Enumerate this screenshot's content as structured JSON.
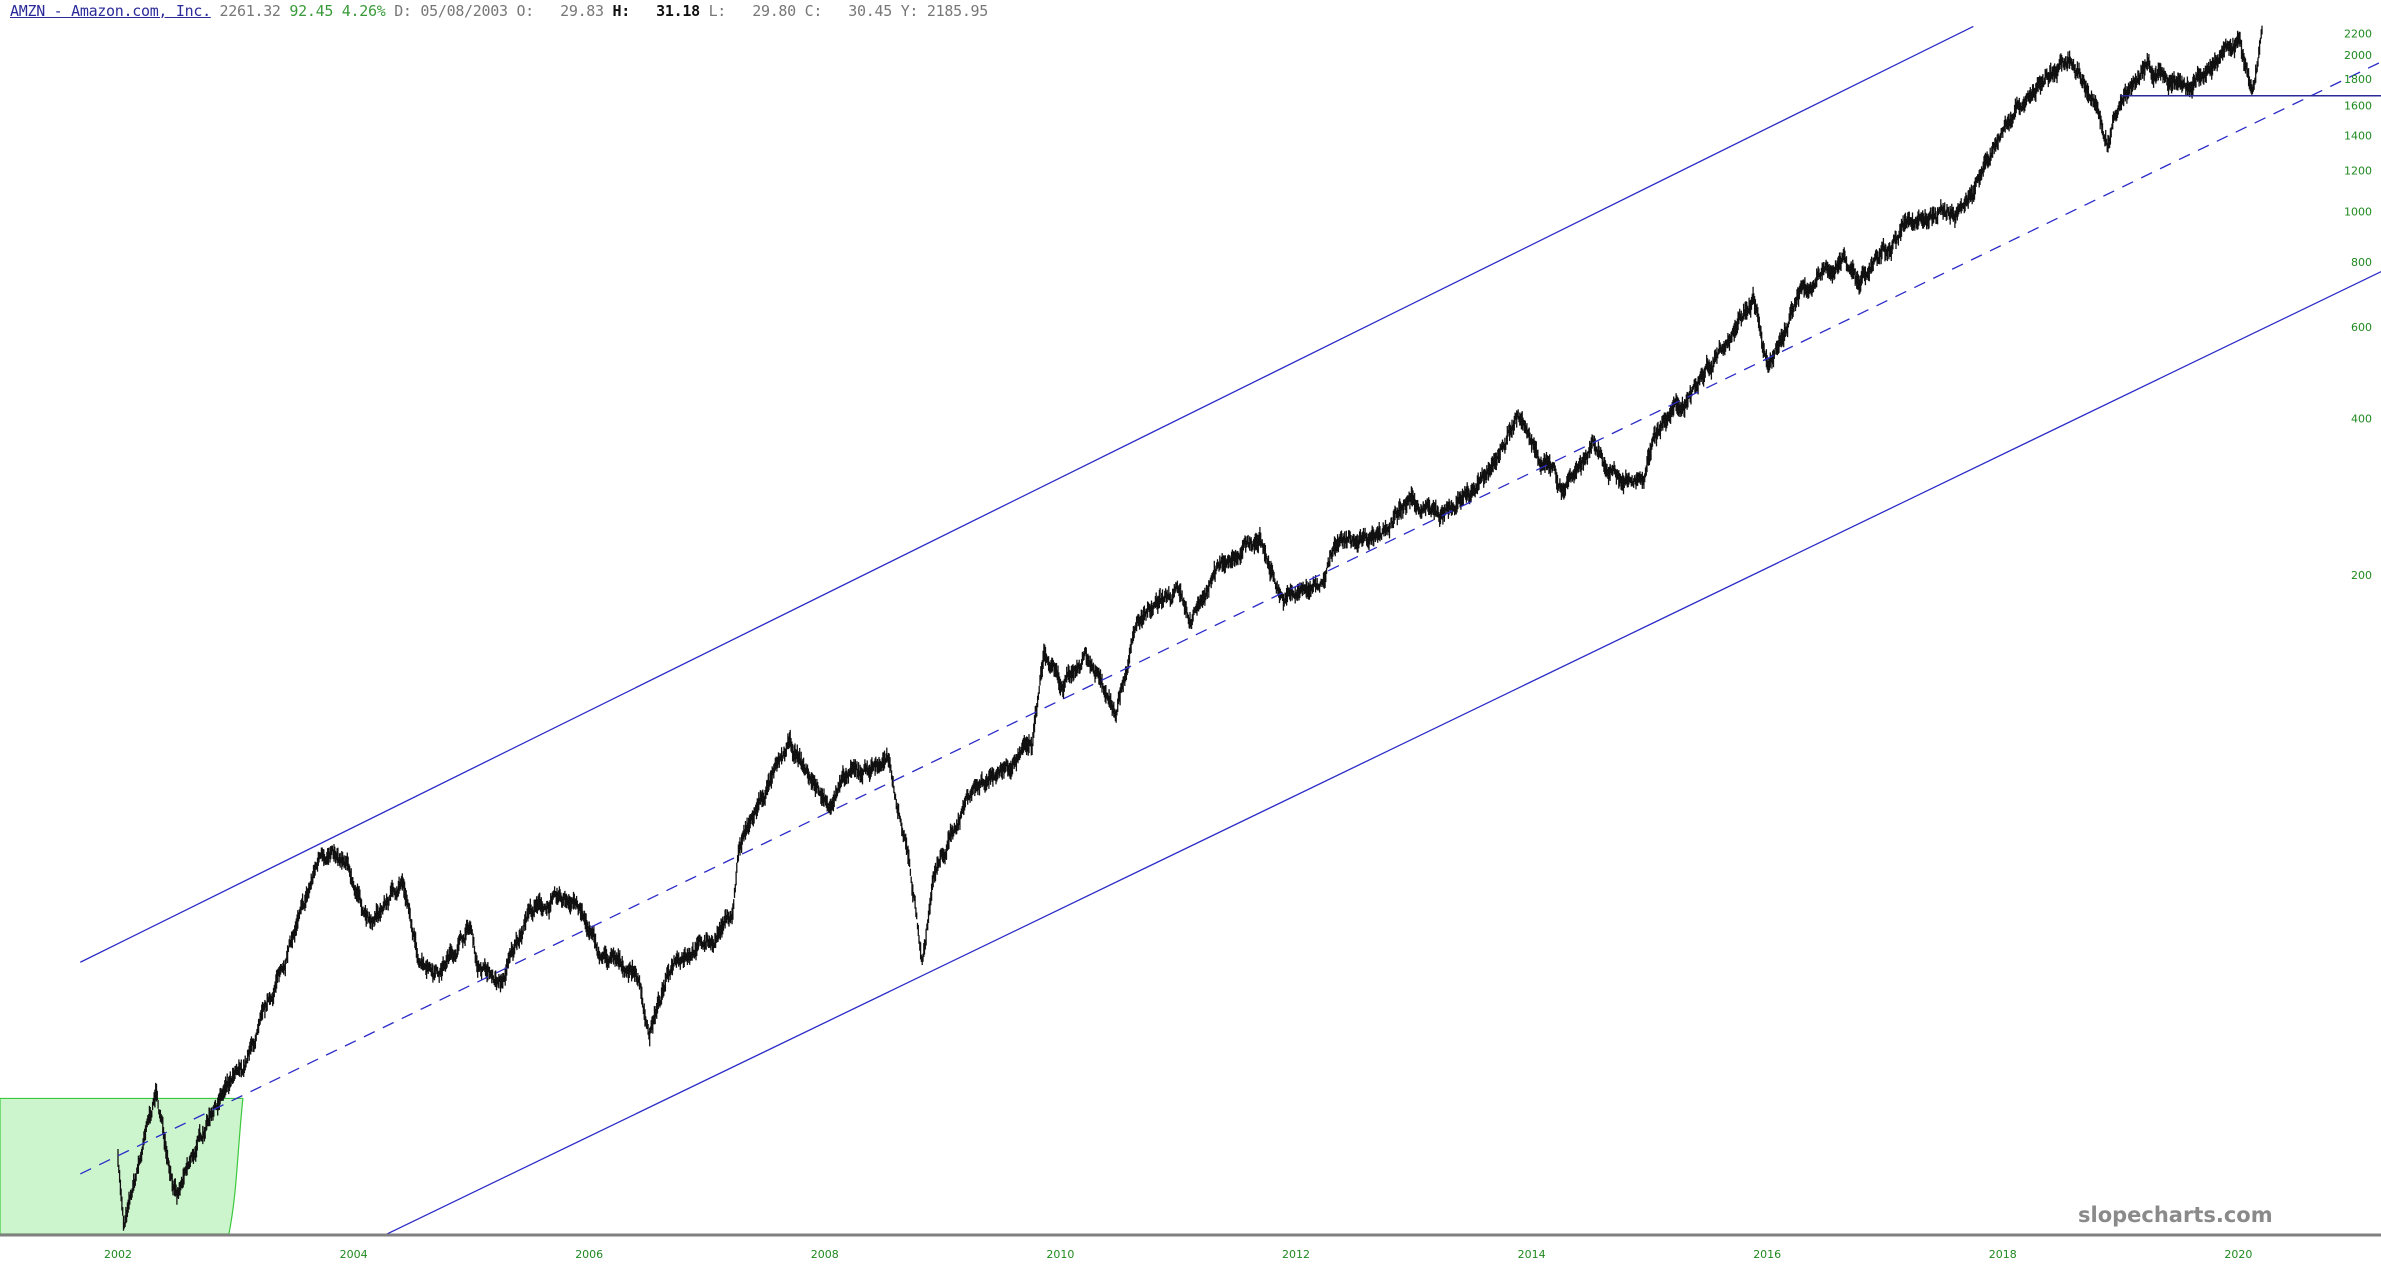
{
  "header": {
    "symbol": "AMZN - Amazon.com, Inc.",
    "last": "2261.32",
    "change": "92.45",
    "change_pct": "4.26%",
    "date_label": "D:",
    "date": "05/08/2003",
    "open_label": "O:",
    "open": "29.83",
    "high_label": "H:",
    "high": "31.18",
    "low_label": "L:",
    "low": "29.80",
    "close_label": "C:",
    "close": "30.45",
    "y_label": "Y:",
    "y": "2185.95"
  },
  "watermark": "slopecharts.com",
  "colors": {
    "bars": "#111111",
    "trendline": "#2b2bc8",
    "axis_labels": "#1f8a1f",
    "shade_fill": "#cdf5cd",
    "shade_stroke": "#3cc83c",
    "axis": "#808080"
  },
  "chart_data": {
    "type": "ohlc",
    "ticker": "AMZN",
    "y_scale": "log",
    "y_ticks": [
      200,
      400,
      600,
      800,
      1000,
      1200,
      1400,
      1600,
      1800,
      2000,
      2200
    ],
    "x_ticks": [
      "2002",
      "2004",
      "2006",
      "2008",
      "2010",
      "2012",
      "2014",
      "2016",
      "2018",
      "2020"
    ],
    "x_range": [
      2001.5,
      2021.5
    ],
    "grid": false,
    "approx_close": [
      [
        2002.0,
        15.4
      ],
      [
        2002.05,
        11
      ],
      [
        2002.32,
        20.2
      ],
      [
        2002.5,
        12.6
      ],
      [
        2002.8,
        18.9
      ],
      [
        2003.06,
        22.3
      ],
      [
        2003.19,
        26.3
      ],
      [
        2003.38,
        34.6
      ],
      [
        2003.57,
        45.2
      ],
      [
        2003.73,
        59.5
      ],
      [
        2003.96,
        53.7
      ],
      [
        2004.15,
        42.2
      ],
      [
        2004.41,
        52
      ],
      [
        2004.54,
        37
      ],
      [
        2004.73,
        34.6
      ],
      [
        2004.99,
        42.2
      ],
      [
        2005.05,
        35.8
      ],
      [
        2005.25,
        32.4
      ],
      [
        2005.48,
        45.2
      ],
      [
        2005.87,
        48
      ],
      [
        2006.09,
        37
      ],
      [
        2006.4,
        34.6
      ],
      [
        2006.51,
        26.3
      ],
      [
        2006.73,
        37
      ],
      [
        2007.05,
        39.7
      ],
      [
        2007.22,
        45.2
      ],
      [
        2007.27,
        59.5
      ],
      [
        2007.44,
        72.4
      ],
      [
        2007.7,
        94.3
      ],
      [
        2008.02,
        72.4
      ],
      [
        2008.21,
        82.5
      ],
      [
        2008.53,
        88
      ],
      [
        2008.7,
        59.5
      ],
      [
        2008.83,
        35.8
      ],
      [
        2008.92,
        52
      ],
      [
        2009.24,
        77.3
      ],
      [
        2009.5,
        85
      ],
      [
        2009.76,
        94
      ],
      [
        2009.86,
        141
      ],
      [
        2010.02,
        120
      ],
      [
        2010.21,
        141
      ],
      [
        2010.47,
        112
      ],
      [
        2010.66,
        162
      ],
      [
        2010.98,
        185
      ],
      [
        2011.11,
        162
      ],
      [
        2011.37,
        212
      ],
      [
        2011.69,
        235
      ],
      [
        2011.89,
        179
      ],
      [
        2012.21,
        192
      ],
      [
        2012.33,
        227
      ],
      [
        2012.72,
        243
      ],
      [
        2012.98,
        277
      ],
      [
        2013.23,
        259
      ],
      [
        2013.56,
        296
      ],
      [
        2013.88,
        401
      ],
      [
        2014.07,
        340
      ],
      [
        2014.26,
        296
      ],
      [
        2014.52,
        351
      ],
      [
        2014.78,
        296
      ],
      [
        2014.97,
        317
      ],
      [
        2015.04,
        375
      ],
      [
        2015.29,
        430
      ],
      [
        2015.55,
        525
      ],
      [
        2015.88,
        687
      ],
      [
        2016.01,
        490
      ],
      [
        2016.26,
        687
      ],
      [
        2016.65,
        815
      ],
      [
        2016.78,
        734
      ],
      [
        2017.23,
        965
      ],
      [
        2017.62,
        998
      ],
      [
        2017.75,
        1100
      ],
      [
        2018.07,
        1540
      ],
      [
        2018.33,
        1765
      ],
      [
        2018.59,
        1970
      ],
      [
        2018.78,
        1600
      ],
      [
        2018.89,
        1350
      ],
      [
        2019.04,
        1700
      ],
      [
        2019.23,
        1890
      ],
      [
        2019.56,
        1700
      ],
      [
        2020.01,
        2150
      ],
      [
        2020.12,
        1650
      ],
      [
        2020.2,
        2250
      ]
    ],
    "annotations": {
      "upper_channel": {
        "from": [
          2001.68,
          36
        ],
        "to": [
          2017.75,
          2270
        ],
        "style": "solid"
      },
      "mid_channel": {
        "from": [
          2001.68,
          14.1
        ],
        "to": [
          2021.5,
          2086
        ],
        "style": "dashed"
      },
      "lower_channel": {
        "from": [
          2004.28,
          10.8
        ],
        "to": [
          2021.5,
          824
        ],
        "style": "solid"
      },
      "support_line": {
        "from_date": 2019.0,
        "price": 1670,
        "style": "solid"
      },
      "shaded_region": {
        "to_date": 2003.06,
        "top_price": 19.7
      }
    }
  }
}
